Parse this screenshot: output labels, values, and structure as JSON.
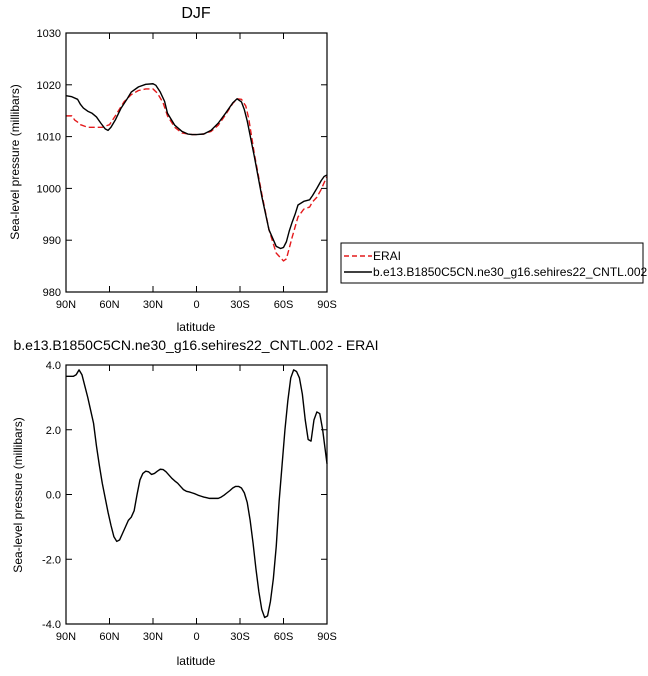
{
  "chart_data": [
    {
      "type": "line",
      "title": "DJF",
      "xlabel": "latitude",
      "ylabel": "Sea-level pressure (millibars)",
      "xlim": [
        90,
        -90
      ],
      "ylim": [
        980,
        1030
      ],
      "xticks": [
        {
          "value": 90,
          "label": "90N"
        },
        {
          "value": 60,
          "label": "60N"
        },
        {
          "value": 30,
          "label": "30N"
        },
        {
          "value": 0,
          "label": "0"
        },
        {
          "value": -30,
          "label": "30S"
        },
        {
          "value": -60,
          "label": "60S"
        },
        {
          "value": -90,
          "label": "90S"
        }
      ],
      "yticks": [
        {
          "value": 980,
          "label": "980"
        },
        {
          "value": 990,
          "label": "990"
        },
        {
          "value": 1000,
          "label": "1000"
        },
        {
          "value": 1010,
          "label": "1010"
        },
        {
          "value": 1020,
          "label": "1020"
        },
        {
          "value": 1030,
          "label": "1030"
        }
      ],
      "grid": false,
      "legend_position": "right",
      "series": [
        {
          "name": "ERAI",
          "color": "#e41a1c",
          "dash": "dashed",
          "x": [
            90,
            86,
            84,
            82,
            80,
            75,
            70,
            65,
            60,
            56,
            50,
            45,
            40,
            35,
            30,
            27,
            23,
            20,
            15,
            10,
            6,
            3,
            0,
            -5,
            -10,
            -15,
            -20,
            -25,
            -28,
            -31,
            -34,
            -36,
            -40,
            -45,
            -50,
            -55,
            -60,
            -62,
            -64,
            -66,
            -70,
            -74,
            -78,
            -80,
            -83,
            -86,
            -88,
            -90
          ],
          "y": [
            1014,
            1014,
            1013.2,
            1012.8,
            1012.3,
            1011.8,
            1011.8,
            1011.8,
            1012.3,
            1014,
            1016.7,
            1018.1,
            1018.9,
            1019.2,
            1019.2,
            1018.4,
            1016.5,
            1014,
            1011.8,
            1010.7,
            1010.5,
            1010.4,
            1010.4,
            1010.5,
            1011,
            1012.2,
            1014.2,
            1016.4,
            1017.3,
            1017.2,
            1015.9,
            1013.5,
            1006.5,
            999,
            992,
            987.5,
            986,
            986.4,
            988.5,
            990.6,
            994.5,
            996,
            996.4,
            997.4,
            998.3,
            999.8,
            1001.1,
            1002.3
          ]
        },
        {
          "name": "b.e13.B1850C5CN.ne30_g16.sehires22_CNTL.002",
          "color": "#000000",
          "dash": "solid",
          "x": [
            90,
            86,
            82,
            80,
            78,
            75,
            72,
            69,
            66,
            63,
            61,
            59,
            56,
            52,
            48,
            45,
            40,
            35,
            30,
            28,
            25,
            22,
            20,
            15,
            10,
            6,
            3,
            0,
            -5,
            -10,
            -15,
            -20,
            -25,
            -28,
            -31,
            -33,
            -35,
            -40,
            -45,
            -50,
            -55,
            -58,
            -60,
            -62,
            -64,
            -66,
            -68,
            -70,
            -74,
            -78,
            -80,
            -83,
            -86,
            -88,
            -90
          ],
          "y": [
            1017.9,
            1017.7,
            1017.2,
            1016.2,
            1015.5,
            1014.9,
            1014.5,
            1013.8,
            1012.6,
            1011.5,
            1011.2,
            1011.8,
            1013.2,
            1015.5,
            1017.2,
            1018.6,
            1019.6,
            1020.1,
            1020.2,
            1019.9,
            1018.6,
            1016.8,
            1014.5,
            1012.2,
            1011,
            1010.5,
            1010.4,
            1010.4,
            1010.5,
            1011.2,
            1012.6,
            1014.5,
            1016.5,
            1017.3,
            1016.7,
            1015.2,
            1013,
            1006,
            998.5,
            992,
            988.8,
            988.4,
            988.6,
            989.7,
            991.8,
            993.5,
            995,
            996.8,
            997.5,
            997.8,
            998.6,
            1000,
            1001.5,
            1002.3,
            1002.6
          ]
        }
      ]
    },
    {
      "type": "line",
      "title": "b.e13.B1850C5CN.ne30_g16.sehires22_CNTL.002 - ERAI",
      "xlabel": "latitude",
      "ylabel": "Sea-level pressure (millibars)",
      "xlim": [
        90,
        -90
      ],
      "ylim": [
        -4,
        4
      ],
      "xticks": [
        {
          "value": 90,
          "label": "90N"
        },
        {
          "value": 60,
          "label": "60N"
        },
        {
          "value": 30,
          "label": "30N"
        },
        {
          "value": 0,
          "label": "0"
        },
        {
          "value": -30,
          "label": "30S"
        },
        {
          "value": -60,
          "label": "60S"
        },
        {
          "value": -90,
          "label": "90S"
        }
      ],
      "yticks": [
        {
          "value": -4,
          "label": "-4.0"
        },
        {
          "value": -2,
          "label": "-2.0"
        },
        {
          "value": 0,
          "label": "0.0"
        },
        {
          "value": 2,
          "label": "2.0"
        },
        {
          "value": 4,
          "label": "4.0"
        }
      ],
      "grid": false,
      "series": [
        {
          "color": "#000000",
          "dash": "solid",
          "x": [
            90,
            87,
            85,
            83,
            81,
            79,
            77,
            75,
            73,
            71,
            69,
            67,
            65,
            63,
            61,
            59,
            57,
            55,
            53,
            51,
            49,
            47,
            45,
            43,
            41,
            39,
            37,
            35,
            33,
            31,
            29,
            27,
            25,
            23,
            21,
            19,
            17,
            15,
            13,
            11,
            9,
            7,
            5,
            3,
            1,
            -1,
            -3,
            -5,
            -7,
            -9,
            -11,
            -13,
            -15,
            -17,
            -19,
            -21,
            -23,
            -25,
            -27,
            -29,
            -31,
            -33,
            -35,
            -37,
            -39,
            -41,
            -43,
            -45,
            -47,
            -49,
            -51,
            -53,
            -55,
            -57,
            -59,
            -61,
            -63,
            -65,
            -67,
            -69,
            -71,
            -73,
            -75,
            -77,
            -79,
            -81,
            -83,
            -85,
            -87,
            -89,
            -90
          ],
          "y": [
            3.65,
            3.65,
            3.65,
            3.7,
            3.85,
            3.7,
            3.35,
            3.0,
            2.6,
            2.2,
            1.5,
            0.9,
            0.35,
            -0.1,
            -0.55,
            -0.95,
            -1.3,
            -1.45,
            -1.4,
            -1.2,
            -1.0,
            -0.8,
            -0.7,
            -0.5,
            0.0,
            0.45,
            0.65,
            0.72,
            0.7,
            0.62,
            0.65,
            0.72,
            0.78,
            0.77,
            0.7,
            0.6,
            0.5,
            0.42,
            0.35,
            0.25,
            0.15,
            0.1,
            0.08,
            0.05,
            0.02,
            -0.02,
            -0.05,
            -0.08,
            -0.1,
            -0.12,
            -0.12,
            -0.12,
            -0.12,
            -0.08,
            -0.02,
            0.05,
            0.12,
            0.2,
            0.25,
            0.25,
            0.2,
            0.05,
            -0.25,
            -0.8,
            -1.5,
            -2.3,
            -3.0,
            -3.55,
            -3.8,
            -3.75,
            -3.3,
            -2.6,
            -1.6,
            -0.2,
            0.9,
            2.0,
            2.9,
            3.6,
            3.85,
            3.8,
            3.6,
            3.1,
            2.3,
            1.7,
            1.65,
            2.3,
            2.55,
            2.5,
            2.0,
            1.3,
            0.95
          ]
        }
      ]
    }
  ]
}
